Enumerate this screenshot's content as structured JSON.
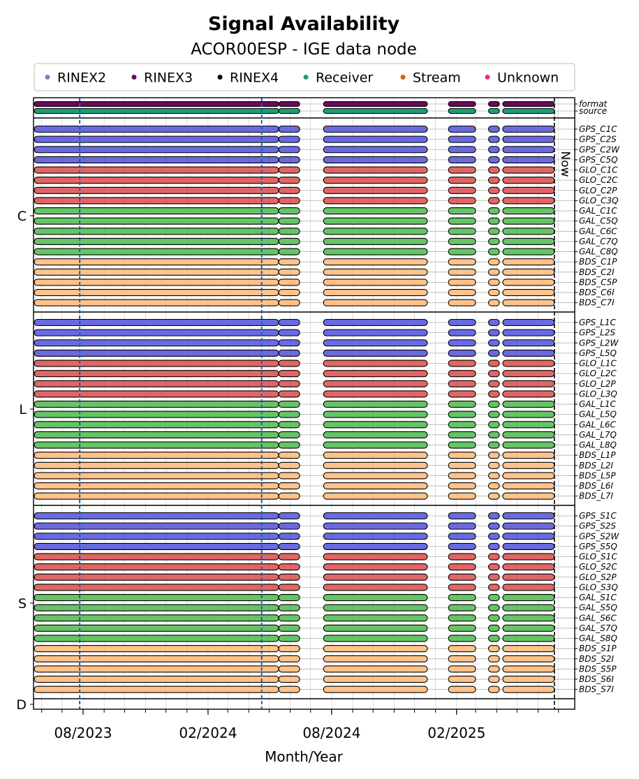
{
  "chart_data": {
    "type": "timeline",
    "title": "Signal Availability",
    "subtitle": "ACOR00ESP - IGE data node",
    "xlabel": "Month/Year",
    "x_range": [
      "2023-05-20",
      "2025-07-25"
    ],
    "x_ticks": [
      {
        "date": "2023-08-01",
        "label": "08/2023"
      },
      {
        "date": "2024-02-01",
        "label": "02/2024"
      },
      {
        "date": "2024-08-01",
        "label": "08/2024"
      },
      {
        "date": "2025-02-01",
        "label": "02/2025"
      }
    ],
    "now_label": "Now",
    "now_date": "2025-06-25",
    "vertical_markers": [
      "2023-07-27",
      "2024-04-20"
    ],
    "legend": [
      {
        "name": "RINEX2",
        "color": "#7f7fbf"
      },
      {
        "name": "RINEX3",
        "color": "#6a0a5a"
      },
      {
        "name": "RINEX4",
        "color": "#1a0010"
      },
      {
        "name": "Receiver",
        "color": "#1b9e77"
      },
      {
        "name": "Stream",
        "color": "#d95f02"
      },
      {
        "name": "Unknown",
        "color": "#e7298a"
      }
    ],
    "constellation_colors": {
      "GPS": "#6a6ae0",
      "GLO": "#e06666",
      "GAL": "#66c466",
      "BDS": "#ffc28a"
    },
    "periods": [
      [
        "2023-05-20",
        "2024-05-15"
      ],
      [
        "2024-05-15",
        "2024-06-15"
      ],
      [
        "2024-07-20",
        "2024-12-20"
      ],
      [
        "2025-01-20",
        "2025-03-01"
      ],
      [
        "2025-03-20",
        "2025-04-05"
      ],
      [
        "2025-04-10",
        "2025-06-25"
      ]
    ],
    "info_rows": [
      {
        "label": "format",
        "color": "#6a0a5a"
      },
      {
        "label": "source",
        "color": "#1b9e77"
      }
    ],
    "groups": [
      {
        "name": "C",
        "signals": [
          "GPS_C1C",
          "GPS_C2S",
          "GPS_C2W",
          "GPS_C5Q",
          "GLO_C1C",
          "GLO_C2C",
          "GLO_C2P",
          "GLO_C3Q",
          "GAL_C1C",
          "GAL_C5Q",
          "GAL_C6C",
          "GAL_C7Q",
          "GAL_C8Q",
          "BDS_C1P",
          "BDS_C2I",
          "BDS_C5P",
          "BDS_C6I",
          "BDS_C7I"
        ]
      },
      {
        "name": "L",
        "signals": [
          "GPS_L1C",
          "GPS_L2S",
          "GPS_L2W",
          "GPS_L5Q",
          "GLO_L1C",
          "GLO_L2C",
          "GLO_L2P",
          "GLO_L3Q",
          "GAL_L1C",
          "GAL_L5Q",
          "GAL_L6C",
          "GAL_L7Q",
          "GAL_L8Q",
          "BDS_L1P",
          "BDS_L2I",
          "BDS_L5P",
          "BDS_L6I",
          "BDS_L7I"
        ]
      },
      {
        "name": "S",
        "signals": [
          "GPS_S1C",
          "GPS_S2S",
          "GPS_S2W",
          "GPS_S5Q",
          "GLO_S1C",
          "GLO_S2C",
          "GLO_S2P",
          "GLO_S3Q",
          "GAL_S1C",
          "GAL_S5Q",
          "GAL_S6C",
          "GAL_S7Q",
          "GAL_S8Q",
          "BDS_S1P",
          "BDS_S2I",
          "BDS_S5P",
          "BDS_S6I",
          "BDS_S7I"
        ]
      },
      {
        "name": "D",
        "signals": []
      }
    ]
  }
}
